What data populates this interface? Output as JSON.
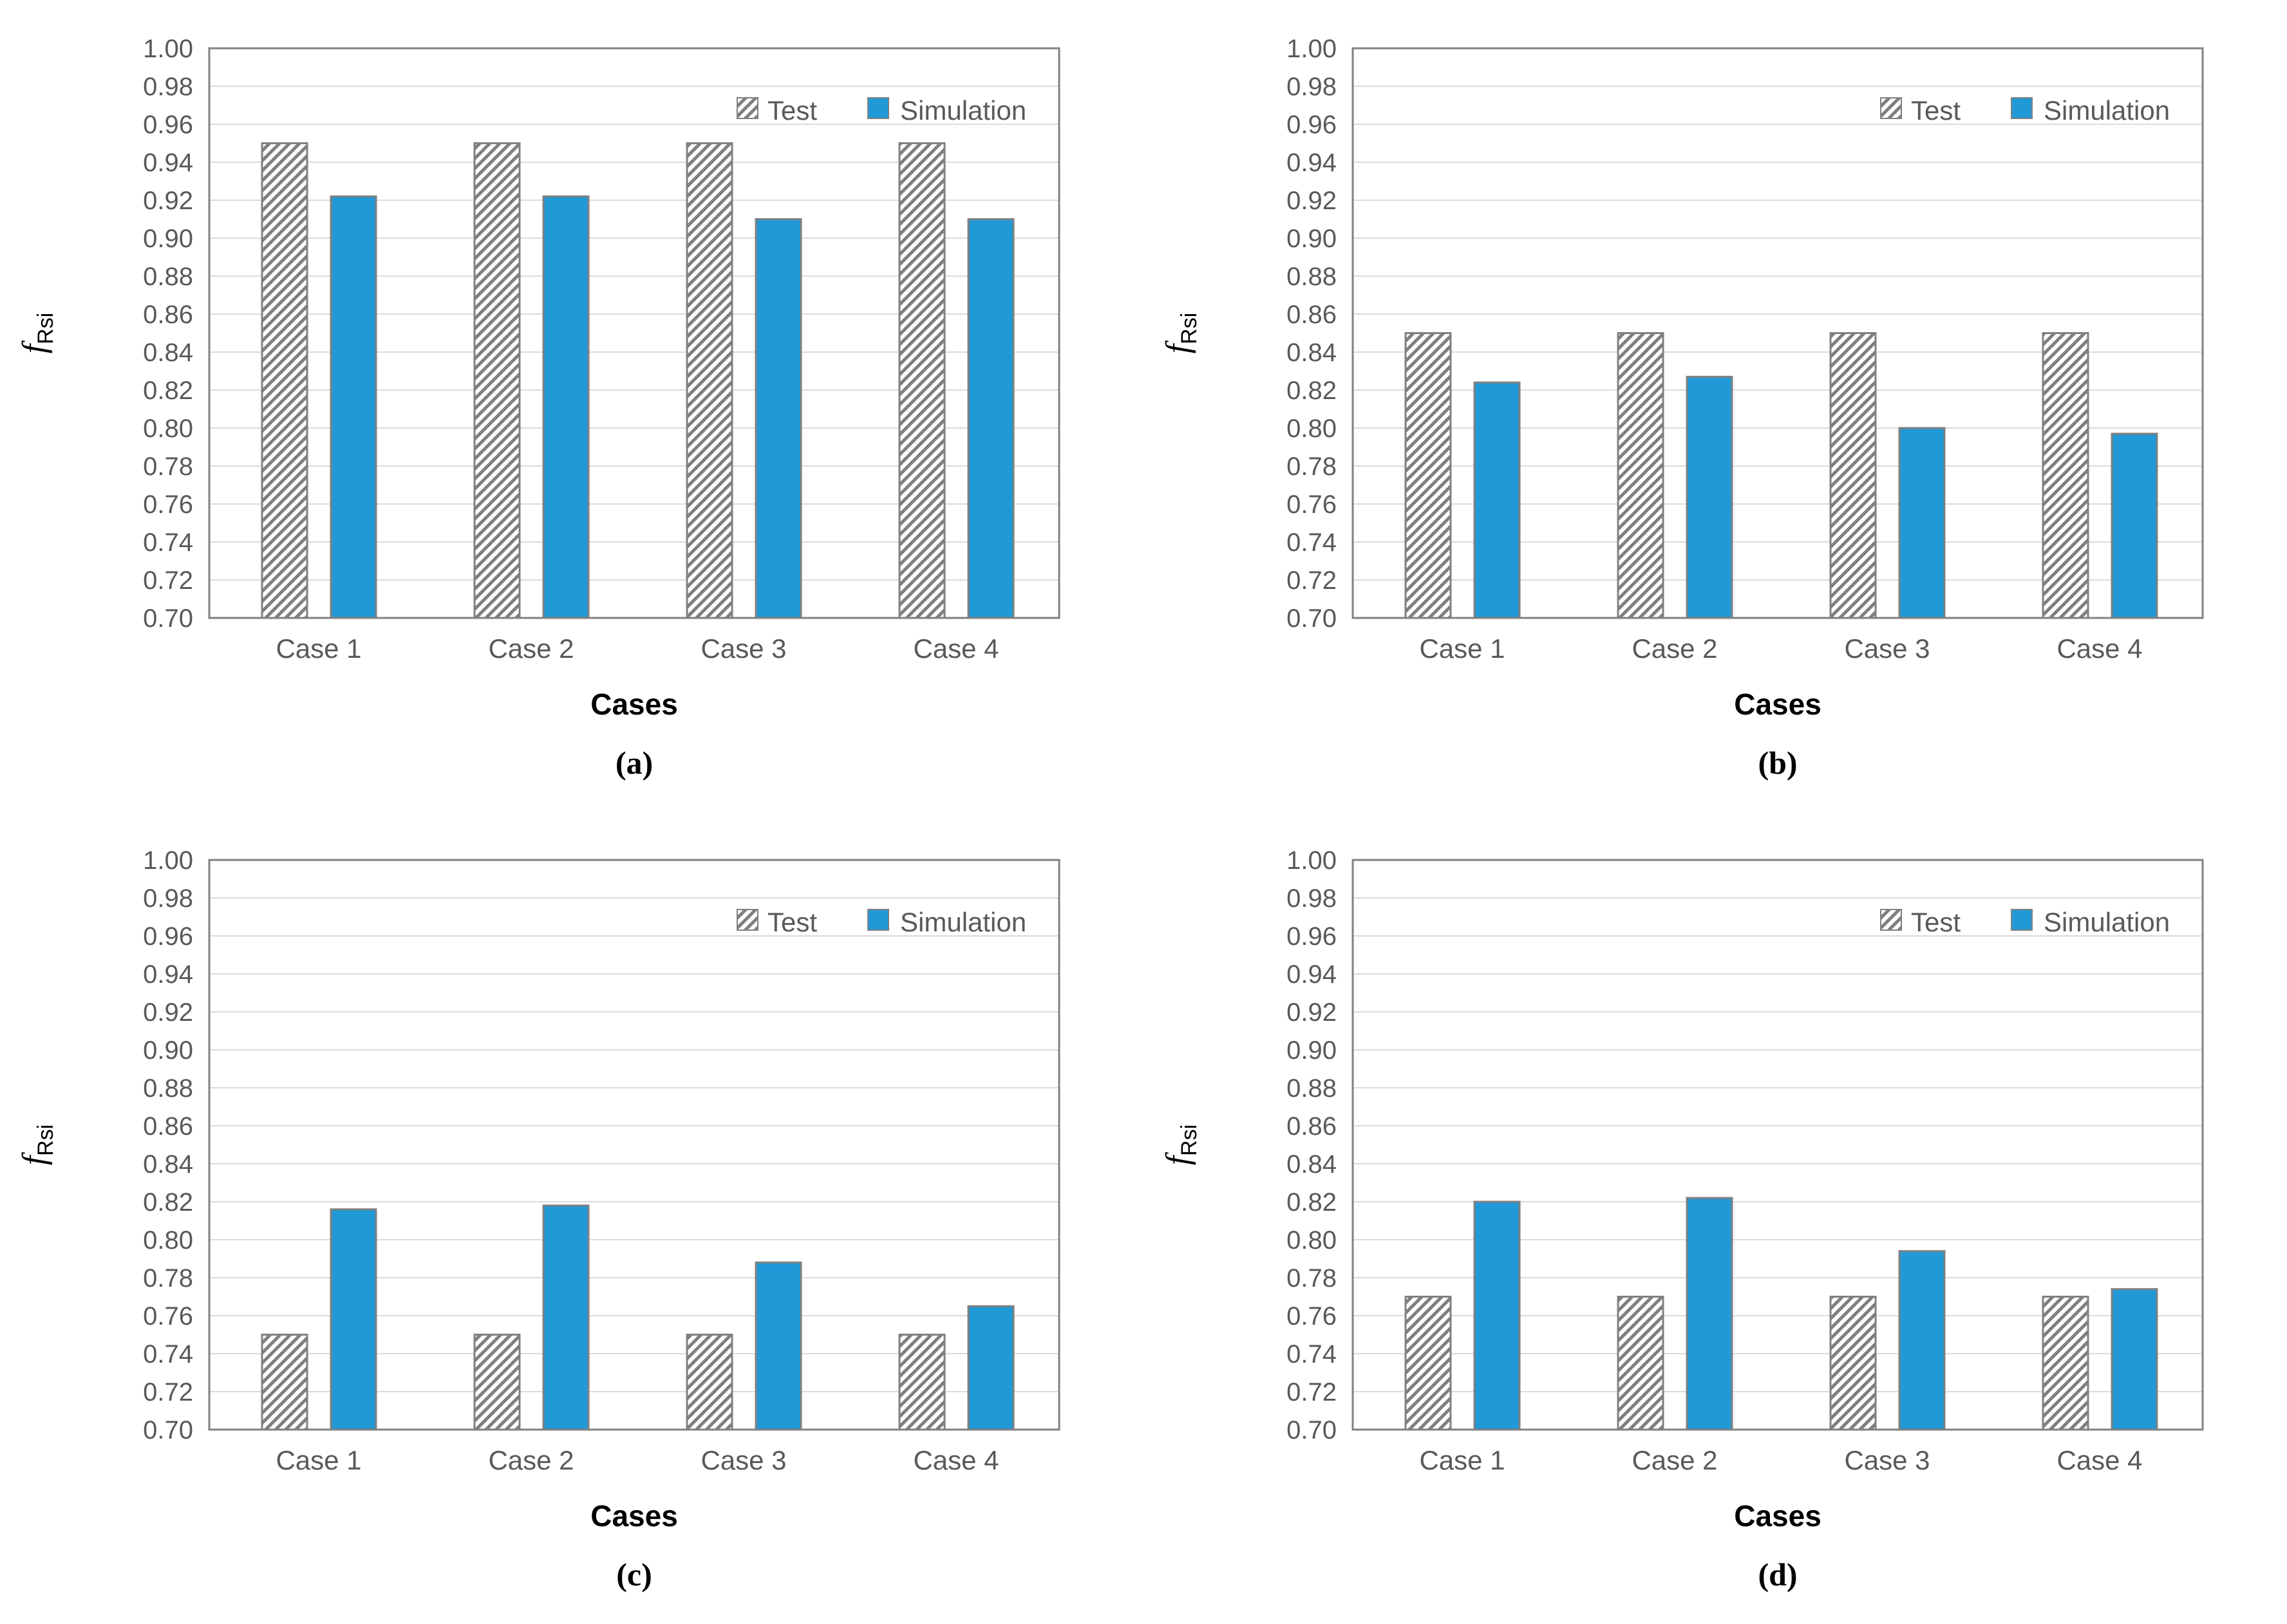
{
  "colors": {
    "simulation_blue": "#2199D6",
    "hatch_gray": "#7F7F7F",
    "bar_border": "#808080",
    "grid_line": "#DBDBDB",
    "axis_line": "#808080",
    "tick_text": "#595959",
    "category_text": "#595959",
    "legend_text": "#595959",
    "axis_title_text": "#000000"
  },
  "legend": {
    "test_label": "Test",
    "simulation_label": "Simulation"
  },
  "axes": {
    "y_title_main": "f",
    "y_title_sub": "Rsi",
    "x_title": "Cases",
    "y_min": 0.7,
    "y_max": 1.0,
    "y_tick_step": 0.02
  },
  "chart_data": [
    {
      "id": "a",
      "caption": "(a)",
      "type": "bar",
      "categories": [
        "Case 1",
        "Case 2",
        "Case 3",
        "Case 4"
      ],
      "series": [
        {
          "name": "Test",
          "values": [
            0.95,
            0.95,
            0.95,
            0.95
          ]
        },
        {
          "name": "Simulation",
          "values": [
            0.922,
            0.922,
            0.91,
            0.91
          ]
        }
      ],
      "xlabel": "Cases",
      "ylabel": "fRsi",
      "ylim": [
        0.7,
        1.0
      ],
      "grid": true,
      "legend_position": "top-right"
    },
    {
      "id": "b",
      "caption": "(b)",
      "type": "bar",
      "categories": [
        "Case 1",
        "Case 2",
        "Case 3",
        "Case 4"
      ],
      "series": [
        {
          "name": "Test",
          "values": [
            0.85,
            0.85,
            0.85,
            0.85
          ]
        },
        {
          "name": "Simulation",
          "values": [
            0.824,
            0.827,
            0.8,
            0.797
          ]
        }
      ],
      "xlabel": "Cases",
      "ylabel": "fRsi",
      "ylim": [
        0.7,
        1.0
      ],
      "grid": true,
      "legend_position": "top-right"
    },
    {
      "id": "c",
      "caption": "(c)",
      "type": "bar",
      "categories": [
        "Case 1",
        "Case 2",
        "Case 3",
        "Case 4"
      ],
      "series": [
        {
          "name": "Test",
          "values": [
            0.75,
            0.75,
            0.75,
            0.75
          ]
        },
        {
          "name": "Simulation",
          "values": [
            0.816,
            0.818,
            0.788,
            0.765
          ]
        }
      ],
      "xlabel": "Cases",
      "ylabel": "fRsi",
      "ylim": [
        0.7,
        1.0
      ],
      "grid": true,
      "legend_position": "top-right"
    },
    {
      "id": "d",
      "caption": "(d)",
      "type": "bar",
      "categories": [
        "Case 1",
        "Case 2",
        "Case 3",
        "Case 4"
      ],
      "series": [
        {
          "name": "Test",
          "values": [
            0.77,
            0.77,
            0.77,
            0.77
          ]
        },
        {
          "name": "Simulation",
          "values": [
            0.82,
            0.822,
            0.794,
            0.774
          ]
        }
      ],
      "xlabel": "Cases",
      "ylabel": "fRsi",
      "ylim": [
        0.7,
        1.0
      ],
      "grid": true,
      "legend_position": "top-right"
    }
  ]
}
